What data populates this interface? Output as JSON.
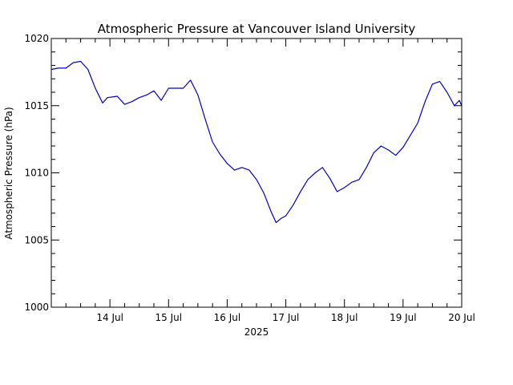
{
  "chart_data": {
    "type": "line",
    "title": "Atmospheric Pressure at Vancouver Island University",
    "ylabel": "Atmospheric Pressure (hPa)",
    "xlabel": "2025",
    "xlim": [
      "2025-07-13T00:00",
      "2025-07-20T00:00"
    ],
    "ylim": [
      1000,
      1020
    ],
    "yticks": [
      1000,
      1005,
      1010,
      1015,
      1020
    ],
    "yticklabels": [
      "1000",
      "1005",
      "1010",
      "1015",
      "1020"
    ],
    "xticks": [
      "2025-07-14T00:00",
      "2025-07-15T00:00",
      "2025-07-16T00:00",
      "2025-07-17T00:00",
      "2025-07-18T00:00",
      "2025-07-19T00:00",
      "2025-07-20T00:00"
    ],
    "xticklabels": [
      "14 Jul",
      "15 Jul",
      "16 Jul",
      "17 Jul",
      "18 Jul",
      "19 Jul",
      "20 Jul"
    ],
    "grid": false,
    "line_color": "#0000cc",
    "series": [
      {
        "x": [
          "2025-07-13T00:00",
          "2025-07-13T03:00",
          "2025-07-13T06:00",
          "2025-07-13T09:00",
          "2025-07-13T12:00",
          "2025-07-13T15:00",
          "2025-07-13T18:00",
          "2025-07-13T21:00",
          "2025-07-13T23:00",
          "2025-07-14T03:00",
          "2025-07-14T06:00",
          "2025-07-14T09:00",
          "2025-07-14T12:00",
          "2025-07-14T15:00",
          "2025-07-14T18:00",
          "2025-07-14T21:00",
          "2025-07-15T00:00",
          "2025-07-15T03:00",
          "2025-07-15T06:00",
          "2025-07-15T09:00",
          "2025-07-15T12:00",
          "2025-07-15T15:00",
          "2025-07-15T18:00",
          "2025-07-15T21:00",
          "2025-07-16T00:00",
          "2025-07-16T03:00",
          "2025-07-16T06:00",
          "2025-07-16T09:00",
          "2025-07-16T12:00",
          "2025-07-16T15:00",
          "2025-07-16T18:00",
          "2025-07-16T20:00",
          "2025-07-16T22:00",
          "2025-07-17T00:00",
          "2025-07-17T03:00",
          "2025-07-17T06:00",
          "2025-07-17T09:00",
          "2025-07-17T12:00",
          "2025-07-17T15:00",
          "2025-07-17T18:00",
          "2025-07-17T21:00",
          "2025-07-18T00:00",
          "2025-07-18T03:00",
          "2025-07-18T06:00",
          "2025-07-18T09:00",
          "2025-07-18T12:00",
          "2025-07-18T15:00",
          "2025-07-18T18:00",
          "2025-07-18T21:00",
          "2025-07-19T00:00",
          "2025-07-19T03:00",
          "2025-07-19T06:00",
          "2025-07-19T09:00",
          "2025-07-19T12:00",
          "2025-07-19T15:00",
          "2025-07-19T18:00",
          "2025-07-19T21:00",
          "2025-07-19T23:00",
          "2025-07-20T00:00"
        ],
        "y": [
          1017.7,
          1017.8,
          1017.8,
          1018.2,
          1018.3,
          1017.7,
          1016.3,
          1015.2,
          1015.6,
          1015.7,
          1015.1,
          1015.3,
          1015.6,
          1015.8,
          1016.1,
          1015.4,
          1016.3,
          1016.3,
          1016.3,
          1016.9,
          1015.8,
          1014.0,
          1012.3,
          1011.4,
          1010.7,
          1010.2,
          1010.4,
          1010.2,
          1009.5,
          1008.5,
          1007.1,
          1006.3,
          1006.6,
          1006.8,
          1007.6,
          1008.6,
          1009.5,
          1010.0,
          1010.4,
          1009.6,
          1008.6,
          1008.9,
          1009.3,
          1009.5,
          1010.4,
          1011.5,
          1012.0,
          1011.7,
          1011.3,
          1011.9,
          1012.8,
          1013.7,
          1015.3,
          1016.6,
          1016.8,
          1016.0,
          1015.0,
          1015.4,
          1015.0
        ]
      }
    ]
  }
}
